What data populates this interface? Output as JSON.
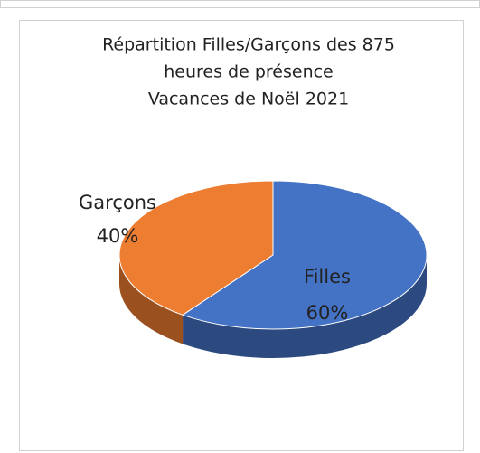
{
  "chart_data": {
    "type": "pie",
    "title": [
      "Répartition Filles/Garçons des 875",
      "heures de présence",
      "Vacances de Noël 2021"
    ],
    "categories": [
      "Filles",
      "Garçons"
    ],
    "values": [
      60,
      40
    ],
    "value_labels": [
      "60%",
      "40%"
    ],
    "colors": [
      "#4472c4",
      "#ed7d31"
    ]
  }
}
